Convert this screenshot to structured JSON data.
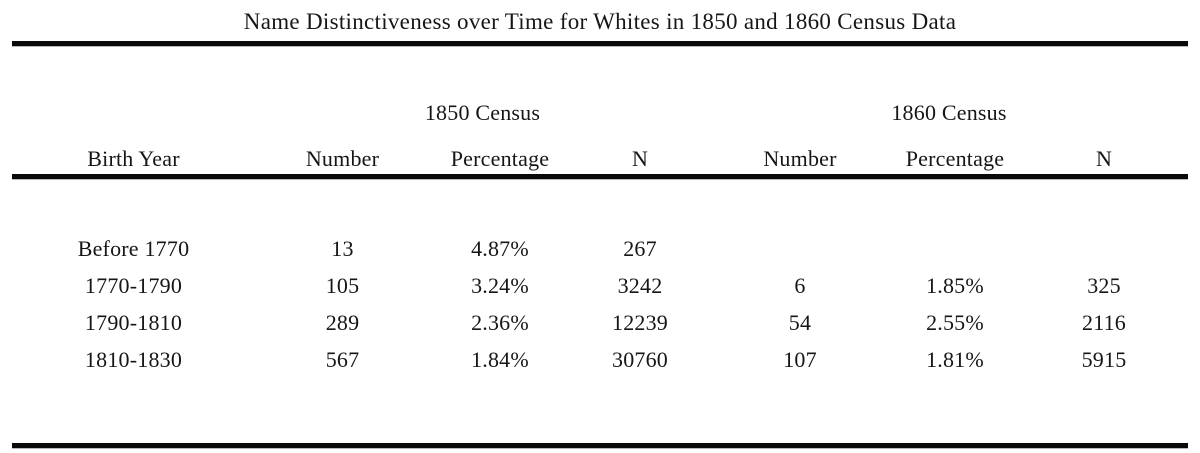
{
  "title": "Name Distinctiveness over Time for Whites in 1850 and 1860 Census Data",
  "table": {
    "group_headers": {
      "census_1850": "1850 Census",
      "census_1860": "1860 Census"
    },
    "columns": [
      "Birth Year",
      "Number",
      "Percentage",
      "N",
      "Number",
      "Percentage",
      "N"
    ],
    "rows": [
      [
        "Before 1770",
        "13",
        "4.87%",
        "267",
        "",
        "",
        ""
      ],
      [
        "1770-1790",
        "105",
        "3.24%",
        "3242",
        "6",
        "1.85%",
        "325"
      ],
      [
        "1790-1810",
        "289",
        "2.36%",
        "12239",
        "54",
        "2.55%",
        "2116"
      ],
      [
        "1810-1830",
        "567",
        "1.84%",
        "30760",
        "107",
        "1.81%",
        "5915"
      ]
    ]
  },
  "colors": {
    "background": "#ffffff",
    "text": "#161616",
    "rule": "#0a0a0a"
  }
}
